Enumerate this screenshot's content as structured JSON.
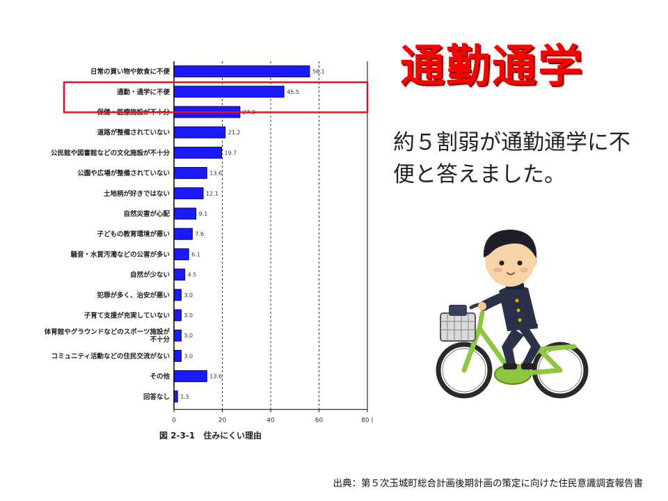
{
  "slide": {
    "title": "通勤通学",
    "comment": "約５割弱が通勤通学に不便と答えました。",
    "source": "出典：第５次玉城町総合計画後期計画の策定に向けた住民意識調査報告書"
  },
  "chart_data": {
    "type": "bar",
    "orientation": "horizontal",
    "caption": "図 2-3-1　住みにくい理由",
    "categories": [
      "日常の買い物や飲食に不便",
      "通勤・通学に不便",
      "保健・医療施設が不十分",
      "道路が整備されていない",
      "公民館や図書館などの文化施設が不十分",
      "公園や広場が整備されていない",
      "土地柄が好きではない",
      "自然災害が心配",
      "子どもの教育環境が悪い",
      "騒音・水質汚濁などの公害が多い",
      "自然が少ない",
      "犯罪が多く、治安が悪い",
      "子育て支援が充実していない",
      "体育館やグラウンドなどのスポーツ施設が不十分",
      "コミュニティ活動などの住民交流がない",
      "その他",
      "回答なし"
    ],
    "values": [
      56.1,
      45.5,
      27.3,
      21.2,
      19.7,
      13.6,
      12.1,
      9.1,
      7.6,
      6.1,
      4.5,
      3.0,
      3.0,
      3.0,
      3.0,
      13.6,
      1.5
    ],
    "value_labels": [
      "56.1",
      "45.5",
      "27.3",
      "21.2",
      "19.7",
      "13.6",
      "12.1",
      "9.1",
      "7.6",
      "6.1",
      "4.5",
      "3.0",
      "3.0",
      "3.0",
      "3.0",
      "13.6",
      "1.5"
    ],
    "xlim": [
      0,
      80
    ],
    "xticks": [
      "0",
      "20",
      "40",
      "60",
      "80 ("
    ],
    "highlight": "通勤・通学に不便",
    "grid": "vertical dashed at 20, 40, 60",
    "colors": {
      "bar": "#1a1aff",
      "bar_edge": "#000066",
      "highlight_box": "#e0141e"
    }
  }
}
